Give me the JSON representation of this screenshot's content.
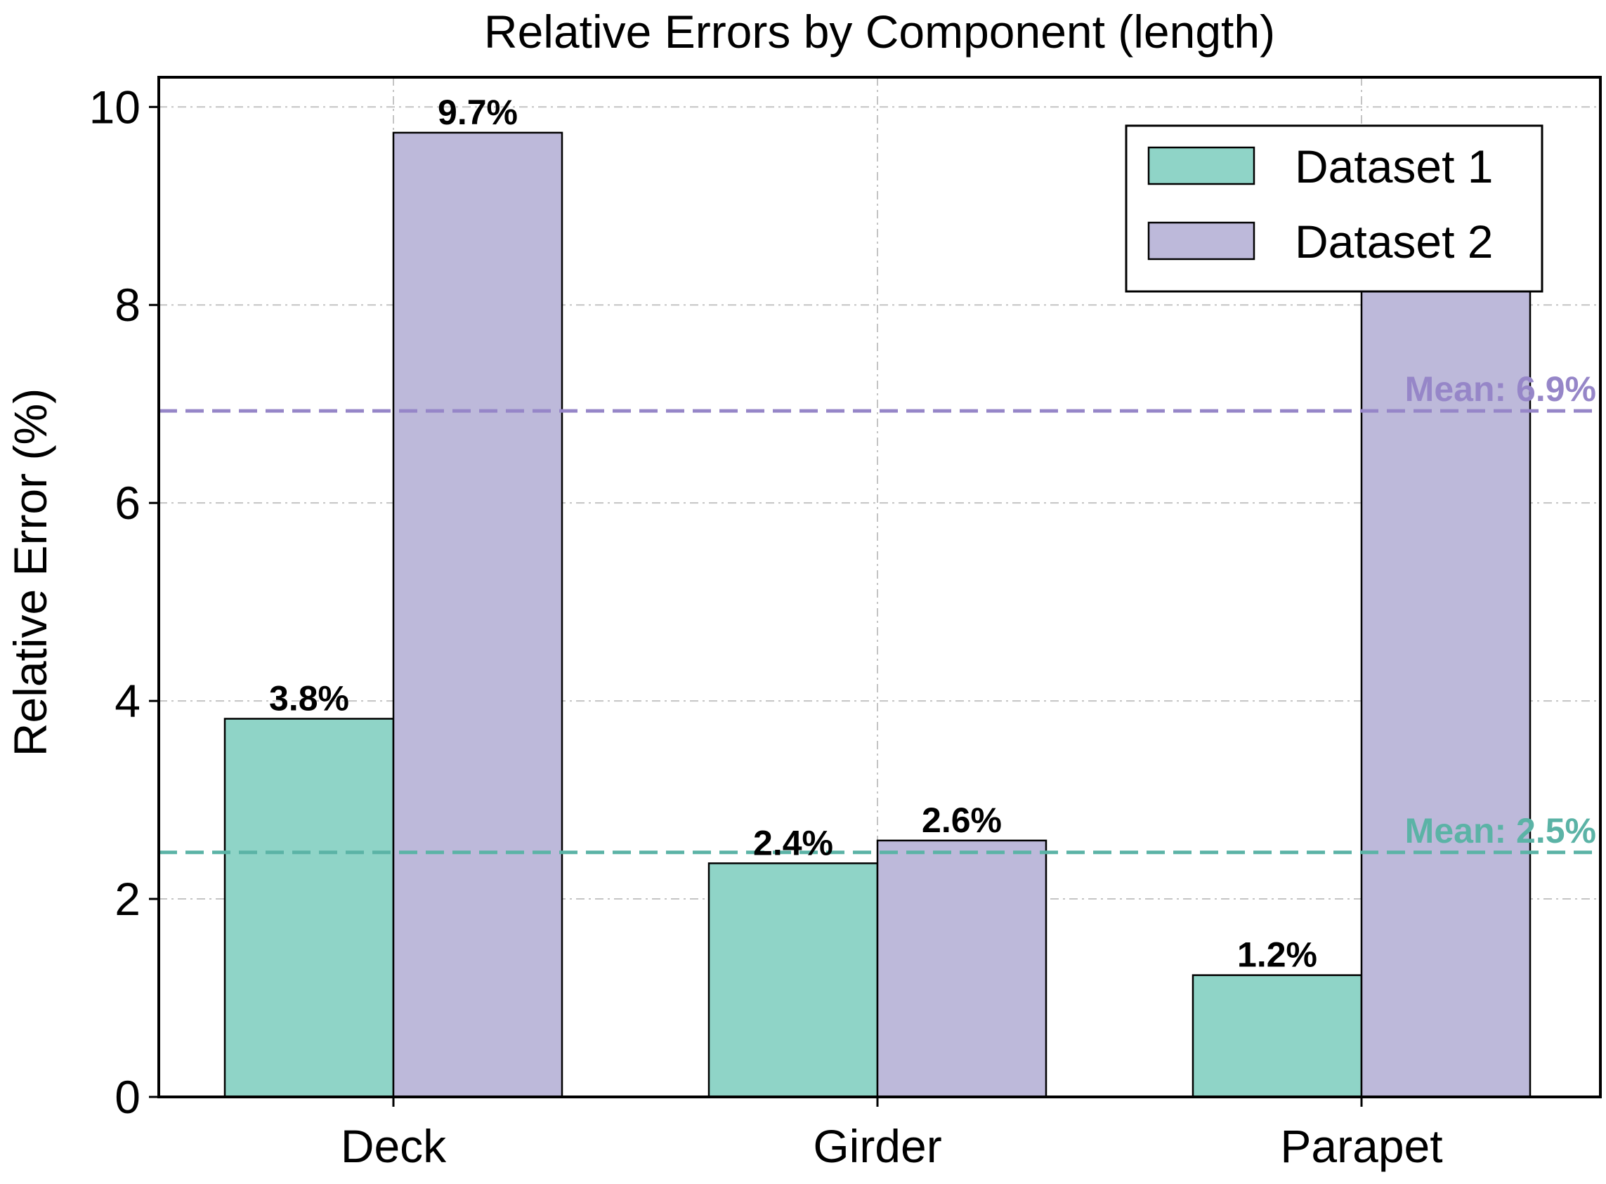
{
  "chart_data": {
    "type": "bar",
    "title": "Relative Errors by Component (length)",
    "xlabel": "",
    "ylabel": "Relative Error (%)",
    "categories": [
      "Deck",
      "Girder",
      "Parapet"
    ],
    "ylim": [
      0,
      10.3
    ],
    "yticks": [
      0,
      2,
      4,
      6,
      8,
      10
    ],
    "grid": true,
    "legend_position": "top-right",
    "series": [
      {
        "name": "Dataset 1",
        "values": [
          3.82,
          2.36,
          1.23
        ],
        "labels": [
          "3.8%",
          "2.4%",
          "1.2%"
        ],
        "color": "#8fd4c7"
      },
      {
        "name": "Dataset 2",
        "values": [
          9.74,
          2.59,
          8.45
        ],
        "labels": [
          "9.7%",
          "2.6%",
          ""
        ],
        "color": "#bdb9da"
      }
    ],
    "mean_lines": [
      {
        "value": 6.93,
        "label": "Mean: 6.9%",
        "color": "#9686c8"
      },
      {
        "value": 2.47,
        "label": "Mean: 2.5%",
        "color": "#5bb3a6"
      }
    ]
  }
}
